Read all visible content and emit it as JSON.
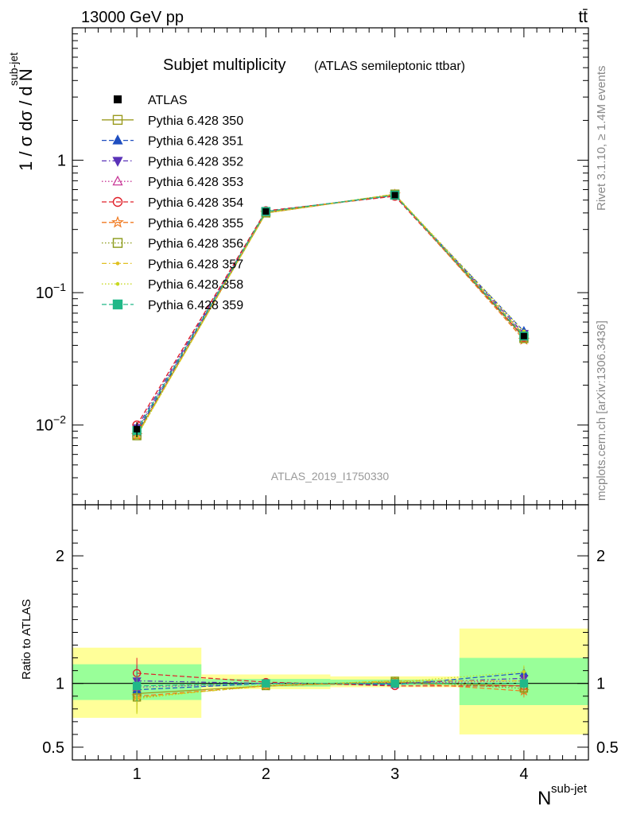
{
  "header": {
    "energy": "13000 GeV pp",
    "process": "tt̄",
    "analysis_id": "ATLAS_2019_I1750330"
  },
  "side_labels": {
    "rivet": "Rivet 3.1.10, ≥ 1.4M events",
    "source": "mcplots.cern.ch [arXiv:1306.3436]"
  },
  "chart_data": [
    {
      "type": "line",
      "title": "Subjet multiplicity",
      "subtitle": "(ATLAS semileptonic ttbar)",
      "ylabel": "1 / σ dσ / d N",
      "ylabel_sup": "sub-jet",
      "yscale": "log",
      "ylim": [
        0.0025,
        10
      ],
      "yticks": [
        0.01,
        0.1,
        1
      ],
      "ytick_labels": [
        {
          "base": "10",
          "exp": "−2"
        },
        {
          "base": "10",
          "exp": "−1"
        },
        {
          "base": "1",
          "exp": ""
        }
      ],
      "xlim": [
        0.5,
        4.5
      ],
      "legend_placement": "top-left",
      "x": [
        1,
        2,
        3,
        4
      ],
      "data": {
        "name": "ATLAS",
        "values": [
          0.0093,
          0.41,
          0.545,
          0.047
        ],
        "err_low": [
          0.0012,
          0.015,
          0.015,
          0.015
        ],
        "err_high": [
          0.0012,
          0.015,
          0.015,
          0.015
        ]
      },
      "series": [
        {
          "name": "Pythia 6.428 350",
          "color": "#9b9b20",
          "marker": "square-open",
          "dash": "solid",
          "values": [
            0.0085,
            0.4,
            0.55,
            0.046
          ]
        },
        {
          "name": "Pythia 6.428 351",
          "color": "#1f4ec0",
          "marker": "triangle-up",
          "dash": "dashed",
          "values": [
            0.0088,
            0.41,
            0.54,
            0.051
          ]
        },
        {
          "name": "Pythia 6.428 352",
          "color": "#5a32b8",
          "marker": "triangle-down",
          "dash": "dashdot",
          "values": [
            0.0095,
            0.41,
            0.545,
            0.049
          ]
        },
        {
          "name": "Pythia 6.428 353",
          "color": "#c93a98",
          "marker": "triangle-up-open",
          "dash": "dotted",
          "values": [
            0.009,
            0.41,
            0.545,
            0.048
          ]
        },
        {
          "name": "Pythia 6.428 354",
          "color": "#e0202a",
          "marker": "circle-open",
          "dash": "dashed",
          "values": [
            0.01,
            0.415,
            0.535,
            0.046
          ]
        },
        {
          "name": "Pythia 6.428 355",
          "color": "#f07a20",
          "marker": "star-open",
          "dash": "dashed",
          "values": [
            0.0084,
            0.4,
            0.55,
            0.044
          ]
        },
        {
          "name": "Pythia 6.428 356",
          "color": "#8a9a18",
          "marker": "square-open",
          "dash": "dotted",
          "values": [
            0.0083,
            0.4,
            0.555,
            0.045
          ]
        },
        {
          "name": "Pythia 6.428 357",
          "color": "#e0c020",
          "marker": "dot",
          "dash": "dashdot",
          "values": [
            0.0083,
            0.4,
            0.555,
            0.048
          ]
        },
        {
          "name": "Pythia 6.428 358",
          "color": "#c8d820",
          "marker": "dot",
          "dash": "dotted",
          "values": [
            0.0082,
            0.405,
            0.55,
            0.051
          ]
        },
        {
          "name": "Pythia 6.428 359",
          "color": "#20b888",
          "marker": "square",
          "dash": "dashed",
          "values": [
            0.0091,
            0.41,
            0.545,
            0.047
          ]
        }
      ]
    },
    {
      "type": "line",
      "title": "",
      "ylabel": "Ratio to ATLAS",
      "xlabel": "N",
      "xlabel_sup": "sub-jet",
      "ylim": [
        0.4,
        2.4
      ],
      "yticks": [
        0.5,
        1,
        2
      ],
      "ytick_labels": [
        "0.5",
        "1",
        "2"
      ],
      "xticks": [
        1,
        2,
        3,
        4
      ],
      "xtick_labels": [
        "1",
        "2",
        "3",
        "4"
      ],
      "xlim": [
        0.5,
        4.5
      ],
      "bands": [
        {
          "x0": 0.5,
          "x1": 1.5,
          "yellow": [
            0.73,
            1.28
          ],
          "green": [
            0.87,
            1.15
          ]
        },
        {
          "x0": 1.5,
          "x1": 2.5,
          "yellow": [
            0.955,
            1.07
          ],
          "green": [
            0.975,
            1.035
          ]
        },
        {
          "x0": 2.5,
          "x1": 3.5,
          "yellow": [
            0.97,
            1.055
          ],
          "green": [
            0.985,
            1.03
          ]
        },
        {
          "x0": 3.5,
          "x1": 4.5,
          "yellow": [
            0.6,
            1.43
          ],
          "green": [
            0.83,
            1.2
          ]
        }
      ],
      "ratios": [
        [
          0.92,
          0.98,
          1.01,
          0.98
        ],
        [
          0.95,
          1.0,
          0.99,
          1.08
        ],
        [
          1.02,
          1.0,
          1.0,
          1.04
        ],
        [
          0.97,
          1.0,
          1.0,
          1.02
        ],
        [
          1.08,
          1.01,
          0.98,
          0.98
        ],
        [
          0.9,
          0.98,
          1.01,
          0.94
        ],
        [
          0.89,
          0.98,
          1.02,
          0.96
        ],
        [
          0.89,
          0.98,
          1.02,
          1.02
        ],
        [
          0.88,
          0.99,
          1.01,
          1.09
        ],
        [
          0.98,
          1.0,
          1.0,
          1.0
        ]
      ]
    }
  ]
}
